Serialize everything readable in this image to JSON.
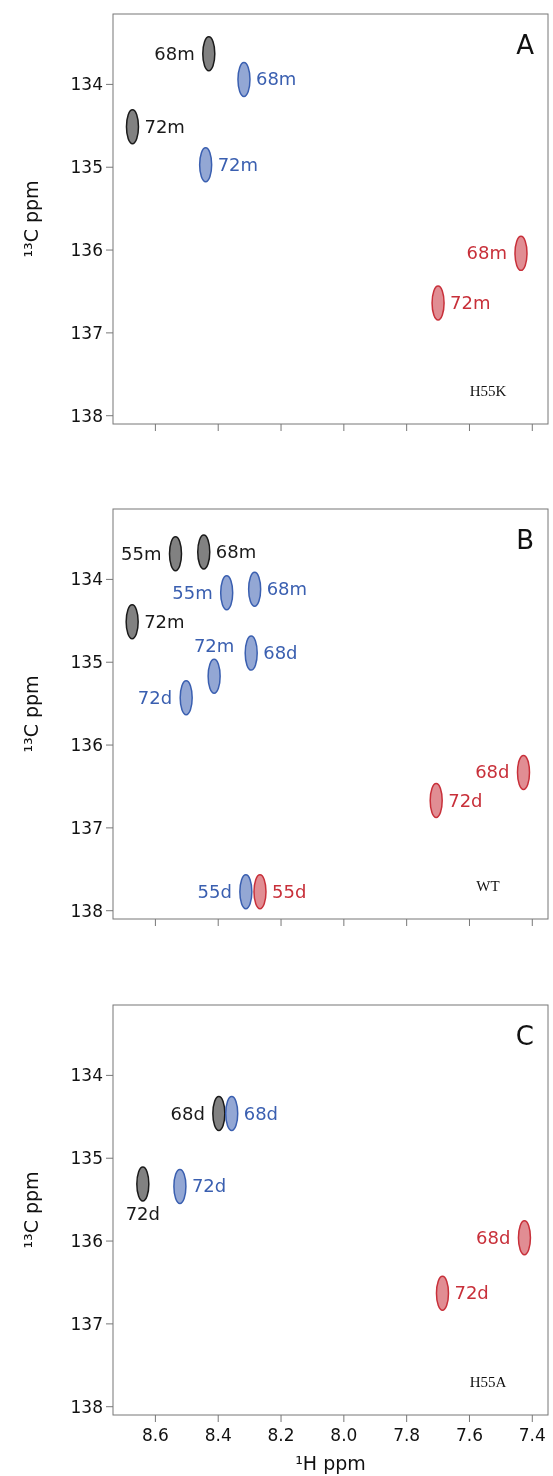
{
  "chart_data": [
    {
      "type": "scatter",
      "title": "A",
      "ylabel": "¹³C ppm",
      "tick_labels": "y",
      "xlim": [
        8.735,
        7.35
      ],
      "ylim": [
        138.1,
        133.15
      ],
      "xticks": [
        {
          "value": 8.6,
          "label": null
        },
        {
          "value": 8.4,
          "label": null
        },
        {
          "value": 8.2,
          "label": null
        },
        {
          "value": 8,
          "label": null
        },
        {
          "value": 7.8,
          "label": null
        },
        {
          "value": 7.6,
          "label": null
        },
        {
          "value": 7.4,
          "label": null
        }
      ],
      "yticks": [
        134,
        135,
        136,
        137,
        138
      ],
      "grid": false,
      "marker": "circle",
      "series": [
        {
          "color": "#1a1a1a",
          "x": [
            8.43,
            8.673
          ],
          "values": [
            133.63,
            134.51
          ]
        },
        {
          "color": "#3a5fb0",
          "x": [
            8.318,
            8.44
          ],
          "values": [
            133.94,
            134.97
          ]
        },
        {
          "color": "#c8303a",
          "x": [
            7.436,
            7.7
          ],
          "values": [
            136.04,
            136.64
          ]
        }
      ],
      "annotations": [
        {
          "text": "68m",
          "x": 8.43,
          "y": 133.63
        },
        {
          "text": "72m",
          "x": 8.673,
          "y": 134.51
        },
        {
          "text": "68m",
          "x": 8.318,
          "y": 133.94
        },
        {
          "text": "72m",
          "x": 8.44,
          "y": 134.97
        },
        {
          "text": "68m",
          "x": 7.436,
          "y": 136.04
        },
        {
          "text": "72m",
          "x": 7.7,
          "y": 136.64
        },
        "H55K"
      ]
    },
    {
      "type": "scatter",
      "title": "B",
      "ylabel": "¹³C ppm",
      "tick_labels": "y",
      "xlim": [
        8.735,
        7.35
      ],
      "ylim": [
        138.1,
        133.15
      ],
      "xticks": [
        {
          "value": 8.6,
          "label": null
        },
        {
          "value": 8.4,
          "label": null
        },
        {
          "value": 8.2,
          "label": null
        },
        {
          "value": 8,
          "label": null
        },
        {
          "value": 7.8,
          "label": null
        },
        {
          "value": 7.6,
          "label": null
        },
        {
          "value": 7.4,
          "label": null
        }
      ],
      "yticks": [
        134,
        135,
        136,
        137,
        138
      ],
      "grid": false,
      "marker": "circle",
      "series": [
        {
          "color": "#1a1a1a",
          "x": [
            8.536,
            8.446,
            8.674
          ],
          "values": [
            133.69,
            133.67,
            134.51
          ]
        },
        {
          "color": "#3a5fb0",
          "x": [
            8.373,
            8.284,
            8.295,
            8.413,
            8.502,
            8.312
          ],
          "values": [
            134.16,
            134.12,
            134.89,
            135.17,
            135.43,
            137.77
          ]
        },
        {
          "color": "#c8303a",
          "x": [
            7.706,
            7.428,
            8.267
          ],
          "values": [
            136.67,
            136.33,
            137.77
          ]
        }
      ],
      "annotations": [
        {
          "text": "55m",
          "x": 8.536,
          "y": 133.69
        },
        {
          "text": "68m",
          "x": 8.446,
          "y": 133.67
        },
        {
          "text": "72m",
          "x": 8.674,
          "y": 134.51
        },
        {
          "text": "55m",
          "x": 8.373,
          "y": 134.16
        },
        {
          "text": "68m",
          "x": 8.284,
          "y": 134.12
        },
        {
          "text": "68d",
          "x": 8.295,
          "y": 134.89
        },
        {
          "text": "72m",
          "x": 8.413,
          "y": 135.17
        },
        {
          "text": "72d",
          "x": 8.502,
          "y": 135.43
        },
        {
          "text": "55d",
          "x": 8.312,
          "y": 137.77
        },
        {
          "text": "72d",
          "x": 7.706,
          "y": 136.67
        },
        {
          "text": "68d",
          "x": 7.428,
          "y": 136.33
        },
        {
          "text": "55d",
          "x": 8.267,
          "y": 137.77
        },
        "WT"
      ]
    },
    {
      "type": "scatter",
      "title": "C",
      "xlabel": "¹H ppm",
      "ylabel": "¹³C ppm",
      "xlim": [
        8.735,
        7.35
      ],
      "ylim": [
        138.1,
        133.15
      ],
      "xticks": [
        8.6,
        8.4,
        8.2,
        {
          "value": 8,
          "label": "8.0"
        },
        7.8,
        7.6,
        7.4
      ],
      "yticks": [
        134,
        135,
        136,
        137,
        138
      ],
      "grid": false,
      "marker": "circle",
      "series": [
        {
          "color": "#1a1a1a",
          "x": [
            8.398,
            8.64
          ],
          "values": [
            134.46,
            135.31
          ]
        },
        {
          "color": "#3a5fb0",
          "x": [
            8.357,
            8.522
          ],
          "values": [
            134.46,
            135.34
          ]
        },
        {
          "color": "#c8303a",
          "x": [
            7.425,
            7.686
          ],
          "values": [
            135.96,
            136.63
          ]
        }
      ],
      "annotations": [
        {
          "text": "68d",
          "x": 8.398,
          "y": 134.46
        },
        {
          "text": "72d",
          "x": 8.64,
          "y": 135.31
        },
        {
          "text": "68d",
          "x": 8.357,
          "y": 134.46
        },
        {
          "text": "72d",
          "x": 8.522,
          "y": 135.34
        },
        {
          "text": "68d",
          "x": 7.425,
          "y": 135.96
        },
        {
          "text": "72d",
          "x": 7.686,
          "y": 136.63
        },
        "H55A"
      ]
    }
  ]
}
